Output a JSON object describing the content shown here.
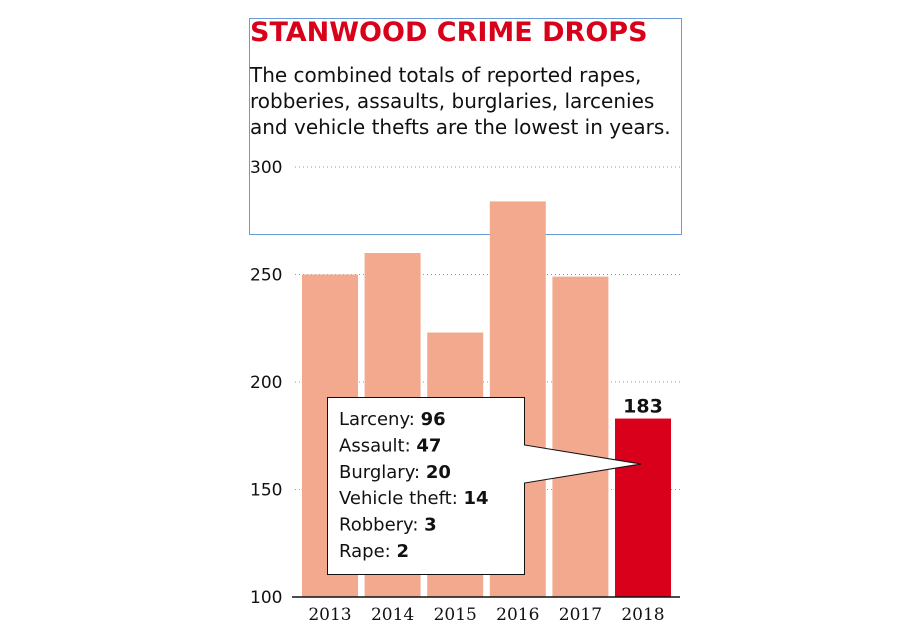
{
  "colors": {
    "bar": "#f2a98e",
    "highlight_bar": "#d9001b",
    "title": "#d9001b",
    "grid": "#999999",
    "title_box_border": "#6a9ad6"
  },
  "chart_data": {
    "type": "bar",
    "title": "STANWOOD CRIME DROPS",
    "subtitle_lines": [
      "The combined totals of reported rapes,",
      "robberies, assaults, burglaries, larcenies",
      "and vehicle thefts are the lowest in years."
    ],
    "categories": [
      "2013",
      "2014",
      "2015",
      "2016",
      "2017",
      "2018"
    ],
    "values": [
      250,
      260,
      223,
      284,
      249,
      183
    ],
    "highlight_index": 5,
    "data_labels": [
      {
        "category": "2018",
        "text": "183"
      }
    ],
    "ylim": [
      100,
      300
    ],
    "yticks": [
      "100",
      "150",
      "200",
      "250",
      "300"
    ],
    "grid": true,
    "grid_style": "dotted",
    "xlabel": "",
    "ylabel": "",
    "annotation": {
      "target_category": "2018",
      "items": [
        {
          "label": "Larceny: ",
          "value": "96"
        },
        {
          "label": "Assault: ",
          "value": "47"
        },
        {
          "label": "Burglary: ",
          "value": "20"
        },
        {
          "label": "Vehicle theft: ",
          "value": "14"
        },
        {
          "label": "Robbery: ",
          "value": "3"
        },
        {
          "label": "Rape: ",
          "value": "2"
        }
      ]
    }
  }
}
